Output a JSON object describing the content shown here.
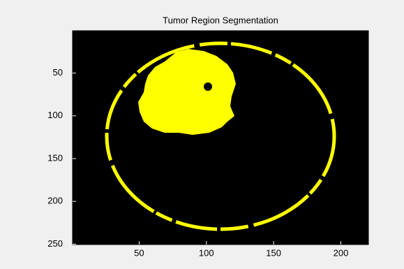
{
  "chart_data": {
    "type": "image",
    "title": "Tumor Region Segmentation",
    "xlim": [
      0.5,
      220.5
    ],
    "ylim": [
      0.5,
      250.5
    ],
    "y_reversed": true,
    "xticks": [
      50,
      100,
      150,
      200
    ],
    "yticks": [
      50,
      100,
      150,
      200,
      250
    ],
    "background": "#000000",
    "color": "#ffff00"
  }
}
